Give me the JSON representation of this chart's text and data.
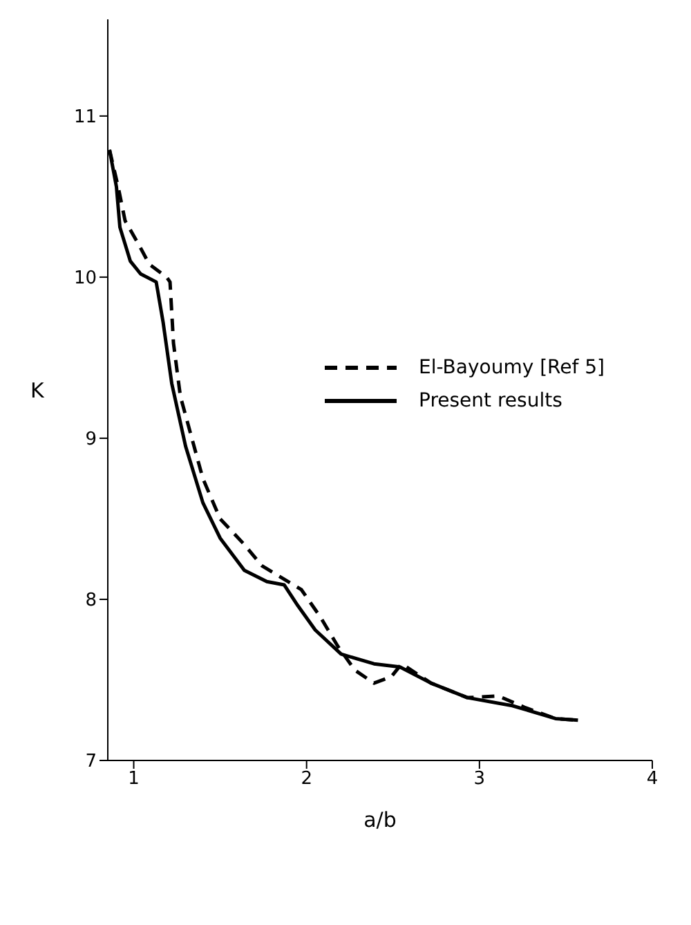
{
  "chart_data": {
    "type": "line",
    "xlabel": "a/b",
    "ylabel": "K",
    "xlim": [
      0.85,
      4
    ],
    "xticks": [
      1,
      2,
      3,
      4
    ],
    "ylim": [
      7,
      11.6
    ],
    "yticks": [
      7,
      8,
      9,
      10,
      11
    ],
    "grid": false,
    "legend": "right",
    "marker": "none",
    "series": [
      {
        "name": "El-Bayoumy [Ref 5]",
        "color": "#000000",
        "line_style": "dashed",
        "x": [
          0.86,
          0.91,
          0.95,
          1.03,
          1.09,
          1.19,
          1.21,
          1.23,
          1.27,
          1.4,
          1.5,
          1.64,
          1.74,
          1.97,
          2.08,
          2.18,
          2.28,
          2.39,
          2.49,
          2.55,
          2.72,
          2.93,
          3.11,
          3.26,
          3.44,
          3.57
        ],
        "values": [
          10.79,
          10.56,
          10.35,
          10.2,
          10.08,
          10.0,
          9.97,
          9.59,
          9.26,
          8.75,
          8.5,
          8.34,
          8.21,
          8.06,
          7.89,
          7.71,
          7.56,
          7.48,
          7.52,
          7.6,
          7.48,
          7.39,
          7.4,
          7.33,
          7.26,
          7.25
        ]
      },
      {
        "name": "Present results",
        "color": "#000000",
        "line_style": "solid",
        "x": [
          0.86,
          0.9,
          0.92,
          0.98,
          1.04,
          1.13,
          1.17,
          1.22,
          1.3,
          1.4,
          1.5,
          1.64,
          1.77,
          1.87,
          1.95,
          2.05,
          2.2,
          2.39,
          2.54,
          2.72,
          2.93,
          3.19,
          3.44,
          3.57
        ],
        "values": [
          10.79,
          10.56,
          10.31,
          10.1,
          10.02,
          9.97,
          9.72,
          9.34,
          8.95,
          8.6,
          8.38,
          8.18,
          8.11,
          8.09,
          7.96,
          7.81,
          7.66,
          7.6,
          7.58,
          7.48,
          7.39,
          7.34,
          7.26,
          7.25
        ]
      }
    ]
  }
}
